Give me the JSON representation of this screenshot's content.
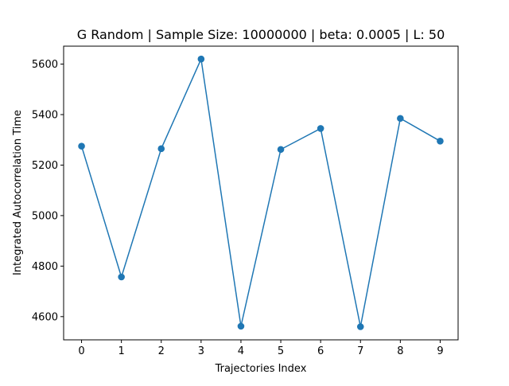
{
  "chart_data": {
    "type": "line",
    "title": "G Random | Sample Size: 10000000 | beta: 0.0005 | L: 50",
    "xlabel": "Trajectories Index",
    "ylabel": "Integrated Autocorrelation Time",
    "x": [
      0,
      1,
      2,
      3,
      4,
      5,
      6,
      7,
      8,
      9
    ],
    "series": [
      {
        "values": [
          5275,
          4757,
          5265,
          5620,
          4562,
          5262,
          5345,
          4560,
          5385,
          5295
        ],
        "color": "#1f77b4",
        "marker": "circle"
      }
    ],
    "xlim": [
      -0.45,
      9.45
    ],
    "ylim": [
      4508,
      5671
    ],
    "xticks": [
      "0",
      "1",
      "2",
      "3",
      "4",
      "5",
      "6",
      "7",
      "8",
      "9"
    ],
    "yticks": [
      "4600",
      "4800",
      "5000",
      "5200",
      "5400",
      "5600"
    ],
    "grid": false,
    "legend": "none"
  }
}
